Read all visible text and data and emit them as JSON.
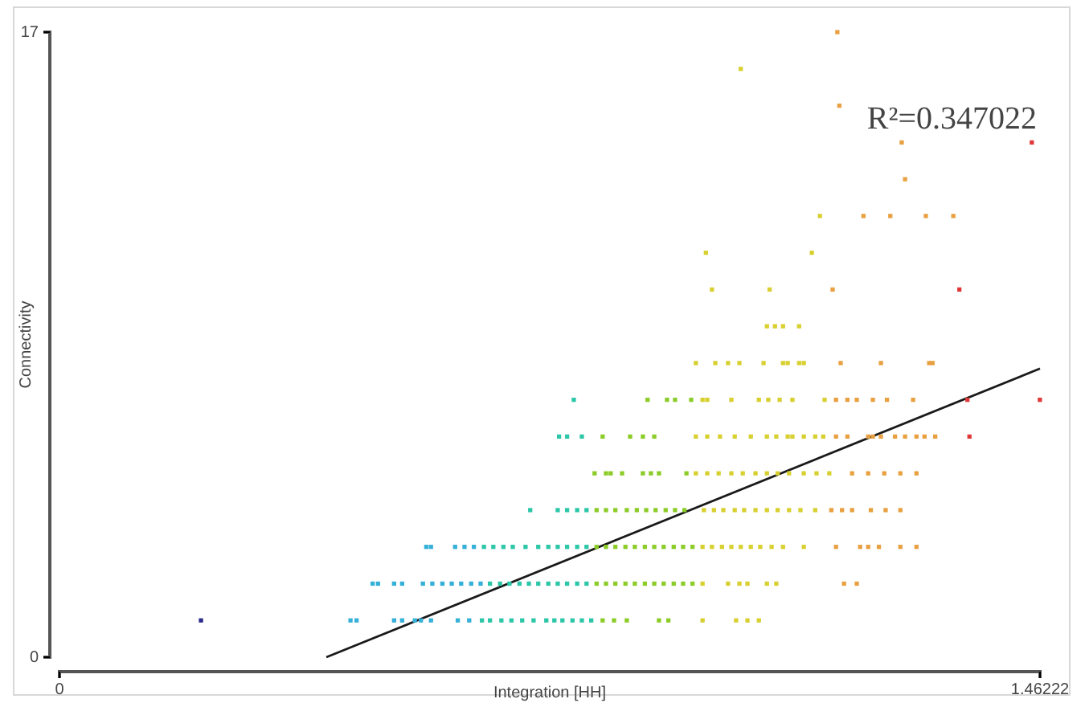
{
  "chart_data": {
    "type": "scatter",
    "xlabel": "Integration [HH]",
    "ylabel": "Connectivity",
    "annotations": [
      "R²=0.347022"
    ],
    "xlim": [
      0,
      1.46222
    ],
    "ylim": [
      0,
      17
    ],
    "xticks": [
      0,
      1.46222
    ],
    "yticks": [
      0,
      17
    ],
    "marker": "square",
    "series": [
      {
        "color": "#2a2a8a",
        "x": [
          0.211
        ],
        "values": [
          1
        ]
      },
      {
        "color": "#35b0d8",
        "x": [
          0.434,
          0.443,
          0.499,
          0.511,
          0.53,
          0.539,
          0.554,
          0.594,
          0.611,
          0.467,
          0.475,
          0.499,
          0.511,
          0.542,
          0.556,
          0.571,
          0.585,
          0.599,
          0.614,
          0.628,
          0.547,
          0.554,
          0.59,
          0.604,
          0.618
        ],
        "values": [
          1,
          1,
          1,
          1,
          1,
          1,
          1,
          1,
          1,
          2,
          2,
          2,
          2,
          2,
          2,
          2,
          2,
          2,
          2,
          2,
          3,
          3,
          3,
          3,
          3
        ]
      },
      {
        "color": "#2cc6a8",
        "x": [
          0.63,
          0.642,
          0.659,
          0.674,
          0.69,
          0.707,
          0.726,
          0.738,
          0.75,
          0.765,
          0.779,
          0.793,
          0.642,
          0.657,
          0.671,
          0.686,
          0.7,
          0.714,
          0.729,
          0.743,
          0.757,
          0.772,
          0.786,
          0.633,
          0.647,
          0.662,
          0.676,
          0.695,
          0.714,
          0.729,
          0.743,
          0.757,
          0.772,
          0.786,
          0.702,
          0.743,
          0.757,
          0.772,
          0.786,
          0.745,
          0.757,
          0.779,
          0.767
        ],
        "values": [
          1,
          1,
          1,
          1,
          1,
          1,
          1,
          1,
          1,
          1,
          1,
          1,
          2,
          2,
          2,
          2,
          2,
          2,
          2,
          2,
          2,
          2,
          2,
          3,
          3,
          3,
          3,
          3,
          3,
          3,
          3,
          3,
          3,
          3,
          4,
          4,
          4,
          4,
          4,
          6,
          6,
          6,
          7
        ]
      },
      {
        "color": "#8ccc28",
        "x": [
          0.81,
          0.827,
          0.846,
          0.894,
          0.908,
          0.801,
          0.815,
          0.829,
          0.844,
          0.858,
          0.873,
          0.887,
          0.901,
          0.916,
          0.93,
          0.944,
          0.801,
          0.815,
          0.829,
          0.844,
          0.858,
          0.873,
          0.887,
          0.901,
          0.916,
          0.93,
          0.944,
          0.801,
          0.815,
          0.829,
          0.846,
          0.861,
          0.875,
          0.889,
          0.904,
          0.918,
          0.932,
          0.798,
          0.815,
          0.822,
          0.839,
          0.87,
          0.882,
          0.894,
          0.935,
          0.81,
          0.851,
          0.87,
          0.887,
          0.877,
          0.906,
          0.918,
          0.942
        ],
        "values": [
          1,
          1,
          1,
          1,
          1,
          2,
          2,
          2,
          2,
          2,
          2,
          2,
          2,
          2,
          2,
          2,
          3,
          3,
          3,
          3,
          3,
          3,
          3,
          3,
          3,
          3,
          3,
          4,
          4,
          4,
          4,
          4,
          4,
          4,
          4,
          4,
          4,
          5,
          5,
          5,
          5,
          5,
          5,
          5,
          5,
          6,
          6,
          6,
          6,
          7,
          7,
          7,
          7
        ]
      },
      {
        "color": "#d8d030",
        "x": [
          0.959,
          1.009,
          1.026,
          1.043,
          0.959,
          0.997,
          1.014,
          1.026,
          1.055,
          1.069,
          0.959,
          0.973,
          0.988,
          1.002,
          1.016,
          1.031,
          1.045,
          1.062,
          1.079,
          1.11,
          0.961,
          0.976,
          0.99,
          1.007,
          1.021,
          1.038,
          1.055,
          1.071,
          1.088,
          1.105,
          1.127,
          0.949,
          0.966,
          0.983,
          1.002,
          1.019,
          1.038,
          1.055,
          1.071,
          1.088,
          1.11,
          1.129,
          1.148,
          0.949,
          0.966,
          0.985,
          1.007,
          1.031,
          1.055,
          1.069,
          1.086,
          1.093,
          1.11,
          1.127,
          1.139,
          0.959,
          0.966,
          1.002,
          1.043,
          1.057,
          1.074,
          1.093,
          1.141,
          0.949,
          0.978,
          0.997,
          1.014,
          1.05,
          1.079,
          1.086,
          1.103,
          1.11,
          1.055,
          1.067,
          1.079,
          1.103,
          0.973,
          1.059,
          0.964,
          1.122,
          1.134,
          1.016
        ],
        "values": [
          1,
          1,
          1,
          1,
          2,
          2,
          2,
          2,
          2,
          2,
          3,
          3,
          3,
          3,
          3,
          3,
          3,
          3,
          3,
          3,
          4,
          4,
          4,
          4,
          4,
          4,
          4,
          4,
          4,
          4,
          4,
          5,
          5,
          5,
          5,
          5,
          5,
          5,
          5,
          5,
          5,
          5,
          5,
          6,
          6,
          6,
          6,
          6,
          6,
          6,
          6,
          6,
          6,
          6,
          6,
          7,
          7,
          7,
          7,
          7,
          7,
          7,
          7,
          8,
          8,
          8,
          8,
          8,
          8,
          8,
          8,
          8,
          9,
          9,
          9,
          9,
          10,
          10,
          11,
          11,
          12,
          16
        ]
      },
      {
        "color": "#e8a040",
        "x": [
          1.158,
          1.194,
          1.206,
          1.222,
          1.254,
          1.278,
          1.151,
          1.167,
          1.182,
          1.21,
          1.232,
          1.254,
          1.182,
          1.206,
          1.23,
          1.254,
          1.278,
          1.158,
          1.175,
          1.206,
          1.213,
          1.225,
          1.246,
          1.261,
          1.278,
          1.29,
          1.306,
          1.17,
          1.189,
          1.158,
          1.175,
          1.189,
          1.213,
          1.234,
          1.273,
          1.165,
          1.225,
          1.297,
          1.302,
          1.153,
          1.199,
          1.239,
          1.292,
          1.333,
          1.261,
          1.256,
          1.163,
          1.16
        ],
        "values": [
          3,
          3,
          3,
          3,
          3,
          3,
          4,
          4,
          4,
          4,
          4,
          4,
          5,
          5,
          5,
          5,
          5,
          6,
          6,
          6,
          6,
          6,
          6,
          6,
          6,
          6,
          6,
          2,
          2,
          7,
          7,
          7,
          7,
          7,
          7,
          8,
          8,
          8,
          8,
          10,
          12,
          12,
          12,
          12,
          13,
          14,
          15,
          17
        ]
      },
      {
        "color": "#e03838",
        "x": [
          1.357,
          1.354,
          1.462,
          1.342,
          1.45
        ],
        "values": [
          6,
          7,
          7,
          10,
          14
        ]
      },
      {
        "type": "line",
        "marker": "none",
        "color": "#1a1a1a",
        "x": [
          0.398,
          1.46222
        ],
        "values": [
          0,
          7.85
        ]
      }
    ]
  }
}
